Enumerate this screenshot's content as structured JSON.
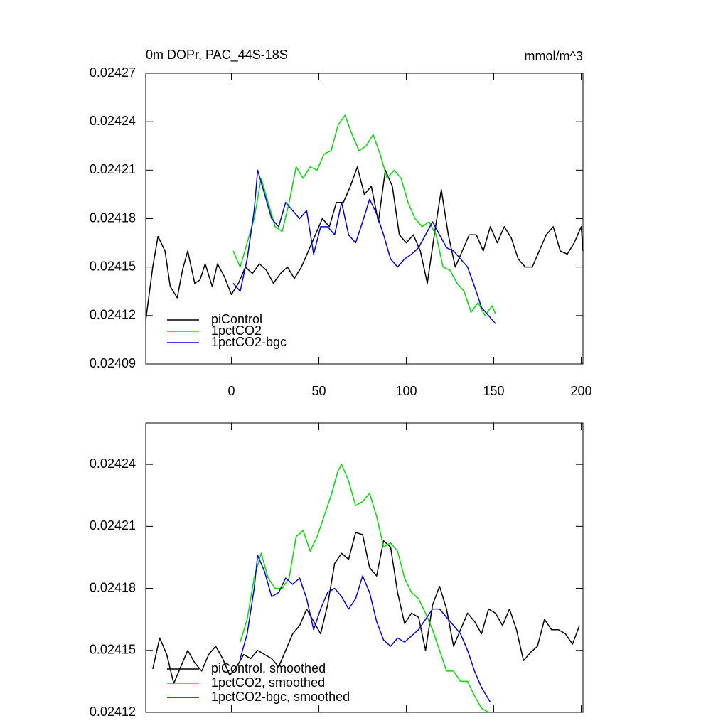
{
  "chart_data": [
    {
      "type": "line",
      "title": "0m DOPr, PAC_44S-18S",
      "units": "mmol/m^3",
      "xlim": [
        -49,
        201
      ],
      "xticks": [
        0,
        50,
        100,
        150,
        200
      ],
      "ylim": [
        0.02409,
        0.02427
      ],
      "yticks": [
        0.02409,
        0.02412,
        0.02415,
        0.02418,
        0.02421,
        0.02424,
        0.02427
      ],
      "legend": "lower left",
      "series": [
        {
          "name": "piControl",
          "color": "#000000",
          "x": [
            -49,
            -45,
            -42,
            -38,
            -35,
            -31,
            -28,
            -25,
            -21,
            -18,
            -15,
            -11,
            -8,
            -4,
            0,
            4,
            8,
            12,
            16,
            20,
            24,
            28,
            32,
            36,
            40,
            44,
            48,
            52,
            56,
            60,
            64,
            68,
            72,
            76,
            80,
            84,
            88,
            92,
            96,
            100,
            104,
            108,
            112,
            116,
            120,
            124,
            128,
            132,
            136,
            140,
            144,
            148,
            152,
            156,
            160,
            164,
            168,
            172,
            176,
            180,
            184,
            188,
            192,
            196,
            200,
            201
          ],
          "values": [
            0.024117,
            0.02415,
            0.024169,
            0.02416,
            0.024138,
            0.024131,
            0.024148,
            0.02416,
            0.02414,
            0.024142,
            0.024152,
            0.024138,
            0.024152,
            0.024144,
            0.024133,
            0.02414,
            0.02415,
            0.024146,
            0.024152,
            0.024148,
            0.02414,
            0.024146,
            0.02415,
            0.024143,
            0.02415,
            0.02416,
            0.02417,
            0.02418,
            0.024175,
            0.02419,
            0.02419,
            0.0242,
            0.024212,
            0.024195,
            0.0242,
            0.024178,
            0.02421,
            0.0242,
            0.02417,
            0.024165,
            0.02417,
            0.02416,
            0.02414,
            0.02417,
            0.024198,
            0.02417,
            0.02415,
            0.02416,
            0.02417,
            0.02417,
            0.02416,
            0.024175,
            0.024165,
            0.024175,
            0.024168,
            0.024155,
            0.02415,
            0.02415,
            0.02416,
            0.02417,
            0.024175,
            0.02416,
            0.024158,
            0.024165,
            0.024175,
            0.02416
          ]
        },
        {
          "name": "1pctCO2",
          "color": "#00dd00",
          "x": [
            1,
            5,
            9,
            13,
            17,
            21,
            25,
            29,
            33,
            37,
            41,
            45,
            49,
            53,
            57,
            61,
            65,
            69,
            73,
            77,
            81,
            85,
            89,
            93,
            97,
            101,
            105,
            109,
            113,
            117,
            121,
            125,
            129,
            133,
            137,
            141,
            145,
            149,
            151
          ],
          "values": [
            0.02416,
            0.02415,
            0.024165,
            0.02418,
            0.024205,
            0.02419,
            0.024175,
            0.024172,
            0.02419,
            0.024212,
            0.024205,
            0.024212,
            0.02421,
            0.02422,
            0.024222,
            0.024238,
            0.024244,
            0.024232,
            0.024222,
            0.024225,
            0.024232,
            0.02422,
            0.024205,
            0.02421,
            0.024205,
            0.02419,
            0.02418,
            0.024175,
            0.024178,
            0.02417,
            0.02415,
            0.024148,
            0.02414,
            0.024135,
            0.024122,
            0.024128,
            0.02412,
            0.024126,
            0.024121
          ]
        },
        {
          "name": "1pctCO2-bgc",
          "color": "#0000dd",
          "x": [
            1,
            5,
            9,
            13,
            15,
            19,
            23,
            27,
            31,
            35,
            39,
            43,
            47,
            51,
            55,
            59,
            63,
            67,
            71,
            75,
            79,
            83,
            87,
            91,
            95,
            99,
            103,
            107,
            111,
            115,
            119,
            123,
            127,
            131,
            135,
            139,
            143,
            147,
            151
          ],
          "values": [
            0.02414,
            0.024135,
            0.024155,
            0.024185,
            0.02421,
            0.024195,
            0.02418,
            0.024175,
            0.02419,
            0.024185,
            0.02418,
            0.024185,
            0.024158,
            0.024175,
            0.024175,
            0.02417,
            0.02419,
            0.02417,
            0.024165,
            0.024178,
            0.024192,
            0.024183,
            0.02417,
            0.024155,
            0.02415,
            0.024155,
            0.024158,
            0.024162,
            0.02417,
            0.024178,
            0.02417,
            0.024162,
            0.02416,
            0.024155,
            0.02415,
            0.024138,
            0.024125,
            0.02412,
            0.024115
          ]
        }
      ]
    },
    {
      "type": "line",
      "xlim": [
        -49,
        201
      ],
      "ylim": [
        0.02412,
        0.02426
      ],
      "yticks": [
        0.02412,
        0.02415,
        0.02418,
        0.02421,
        0.02424
      ],
      "legend": "lower left",
      "series": [
        {
          "name": "piControl, smoothed",
          "color": "#000000",
          "x": [
            -45,
            -41,
            -37,
            -33,
            -29,
            -25,
            -21,
            -17,
            -13,
            -9,
            -5,
            -1,
            3,
            7,
            11,
            15,
            19,
            23,
            27,
            31,
            35,
            39,
            43,
            47,
            51,
            55,
            59,
            63,
            67,
            71,
            75,
            79,
            83,
            87,
            91,
            95,
            99,
            103,
            107,
            111,
            115,
            119,
            123,
            127,
            131,
            135,
            139,
            143,
            147,
            151,
            155,
            159,
            163,
            167,
            171,
            175,
            179,
            183,
            187,
            191,
            195,
            199
          ],
          "values": [
            0.024141,
            0.024156,
            0.024148,
            0.024134,
            0.024142,
            0.02415,
            0.024144,
            0.02414,
            0.024148,
            0.024152,
            0.024146,
            0.024138,
            0.024142,
            0.024148,
            0.024146,
            0.02415,
            0.024148,
            0.024146,
            0.024142,
            0.02415,
            0.024158,
            0.024162,
            0.02417,
            0.024164,
            0.024158,
            0.024172,
            0.024192,
            0.024197,
            0.024194,
            0.024207,
            0.024206,
            0.02419,
            0.024186,
            0.024203,
            0.0242,
            0.024178,
            0.024163,
            0.024168,
            0.024166,
            0.02415,
            0.024172,
            0.024181,
            0.02417,
            0.024152,
            0.02416,
            0.024168,
            0.024164,
            0.024158,
            0.02417,
            0.024168,
            0.024162,
            0.02417,
            0.02416,
            0.024145,
            0.024149,
            0.024152,
            0.024165,
            0.02416,
            0.02416,
            0.024158,
            0.024153,
            0.024162
          ]
        },
        {
          "name": "1pctCO2, smoothed",
          "color": "#00dd00",
          "x": [
            5,
            9,
            13,
            17,
            21,
            25,
            29,
            33,
            37,
            41,
            45,
            49,
            53,
            57,
            61,
            63,
            67,
            71,
            75,
            79,
            83,
            87,
            91,
            95,
            99,
            103,
            107,
            111,
            115,
            119,
            123,
            127,
            131,
            135,
            139,
            143,
            147
          ],
          "values": [
            0.024154,
            0.024165,
            0.024185,
            0.024197,
            0.024185,
            0.02418,
            0.02418,
            0.024185,
            0.024205,
            0.024208,
            0.024198,
            0.024205,
            0.024215,
            0.024225,
            0.024237,
            0.02424,
            0.024232,
            0.02422,
            0.024222,
            0.024226,
            0.024215,
            0.0242,
            0.024202,
            0.024198,
            0.024185,
            0.024178,
            0.024175,
            0.024168,
            0.02416,
            0.02415,
            0.02414,
            0.02414,
            0.024135,
            0.024135,
            0.024128,
            0.024122,
            0.02412
          ]
        },
        {
          "name": "1pctCO2-bgc, smoothed",
          "color": "#0000dd",
          "x": [
            5,
            9,
            13,
            15,
            19,
            23,
            27,
            31,
            35,
            39,
            43,
            47,
            51,
            55,
            59,
            63,
            67,
            71,
            75,
            79,
            83,
            87,
            91,
            95,
            99,
            103,
            107,
            111,
            115,
            119,
            123,
            127,
            131,
            135,
            139,
            143,
            148
          ],
          "values": [
            0.024146,
            0.024158,
            0.02418,
            0.024196,
            0.024188,
            0.024176,
            0.024178,
            0.024185,
            0.024182,
            0.024185,
            0.024175,
            0.02416,
            0.02417,
            0.024178,
            0.02418,
            0.024176,
            0.02417,
            0.024175,
            0.024186,
            0.024178,
            0.024164,
            0.024155,
            0.024152,
            0.024156,
            0.024154,
            0.024157,
            0.02416,
            0.024165,
            0.02417,
            0.02417,
            0.024166,
            0.024162,
            0.024158,
            0.02415,
            0.02414,
            0.024132,
            0.024125
          ]
        }
      ]
    }
  ]
}
